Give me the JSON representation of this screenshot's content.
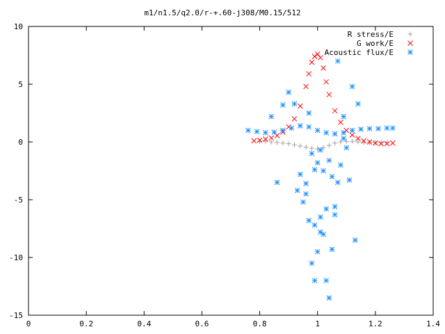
{
  "chart_data": {
    "type": "scatter",
    "title": "m1/n1.5/q2.0/r-+.60-j308/M0.15/512",
    "xlabel": "",
    "ylabel": "",
    "xlim": [
      0,
      1.4
    ],
    "ylim": [
      -15,
      10
    ],
    "xticks": [
      "0",
      "0.2",
      "0.4",
      "0.6",
      "0.8",
      "1",
      "1.2",
      "1.4"
    ],
    "yticks": [
      "10",
      "5",
      "0",
      "-5",
      "-10",
      "-15"
    ],
    "grid": false,
    "legend_position": "top-right",
    "series": [
      {
        "name": "R stress/E",
        "marker": "+",
        "color": "#a0a0a0",
        "x": [
          0.8,
          0.82,
          0.84,
          0.86,
          0.88,
          0.9,
          0.92,
          0.94,
          0.96,
          0.98,
          1.0,
          1.02,
          1.04,
          1.06,
          1.08,
          1.1,
          1.12,
          1.14,
          1.16,
          1.18,
          1.2,
          1.22,
          1.24
        ],
        "y": [
          0.05,
          0.05,
          0.0,
          -0.05,
          -0.1,
          -0.15,
          -0.25,
          -0.35,
          -0.45,
          -0.55,
          -0.6,
          -0.5,
          -0.3,
          -0.1,
          0.0,
          0.05,
          0.05,
          0.0,
          -0.05,
          -0.05,
          -0.05,
          -0.05,
          -0.05
        ]
      },
      {
        "name": "G work/E",
        "marker": "x",
        "color": "#ff0000",
        "x": [
          0.78,
          0.8,
          0.82,
          0.84,
          0.86,
          0.88,
          0.9,
          0.92,
          0.94,
          0.96,
          0.97,
          0.98,
          0.99,
          1.0,
          1.01,
          1.02,
          1.03,
          1.04,
          1.06,
          1.08,
          1.1,
          1.12,
          1.14,
          1.16,
          1.18,
          1.2,
          1.22,
          1.24,
          1.26
        ],
        "y": [
          0.1,
          0.15,
          0.25,
          0.35,
          0.55,
          0.85,
          1.3,
          2.0,
          3.1,
          4.8,
          5.9,
          6.9,
          7.4,
          7.6,
          7.3,
          6.4,
          5.2,
          4.1,
          2.7,
          1.7,
          1.0,
          0.6,
          0.3,
          0.1,
          0.0,
          -0.1,
          -0.15,
          -0.15,
          -0.1
        ]
      },
      {
        "name": "Acoustic flux/E",
        "marker": "*",
        "color": "#1e90ff",
        "x": [
          0.76,
          0.79,
          0.82,
          0.85,
          0.88,
          0.91,
          0.94,
          0.97,
          1.0,
          1.03,
          1.06,
          1.09,
          1.12,
          1.15,
          1.18,
          1.21,
          1.24,
          1.26,
          0.9,
          0.92,
          0.94,
          0.96,
          0.97,
          0.98,
          0.99,
          1.0,
          1.01,
          1.02,
          1.03,
          1.04,
          1.05,
          1.06,
          1.07,
          1.08,
          1.09,
          1.1,
          1.12,
          1.14,
          0.84,
          0.86,
          0.88,
          0.93,
          0.95,
          0.97,
          0.99,
          1.01,
          1.03,
          1.05,
          1.07,
          1.09,
          1.11,
          1.13,
          0.98,
          1.0,
          1.02,
          1.04,
          0.96,
          1.06,
          0.99,
          1.01
        ],
        "y": [
          1.0,
          0.9,
          0.8,
          0.85,
          1.0,
          1.2,
          1.4,
          1.3,
          1.0,
          0.8,
          0.7,
          0.8,
          1.0,
          1.1,
          1.15,
          1.15,
          1.2,
          1.2,
          4.3,
          3.3,
          -2.8,
          -4.5,
          -6.8,
          -10.5,
          -12.0,
          -9.5,
          -7.8,
          -8.0,
          -12.0,
          -13.5,
          -9.3,
          -5.6,
          -3.5,
          -2.0,
          0.3,
          -0.5,
          4.8,
          3.3,
          2.2,
          -3.5,
          3.2,
          -4.2,
          -5.2,
          2.5,
          -7.2,
          -6.5,
          -5.8,
          -3.0,
          7.0,
          2.2,
          -3.3,
          -8.5,
          -1.0,
          -1.8,
          -2.5,
          -1.6,
          -3.6,
          -6.3,
          -2.4,
          -0.7
        ]
      }
    ]
  }
}
